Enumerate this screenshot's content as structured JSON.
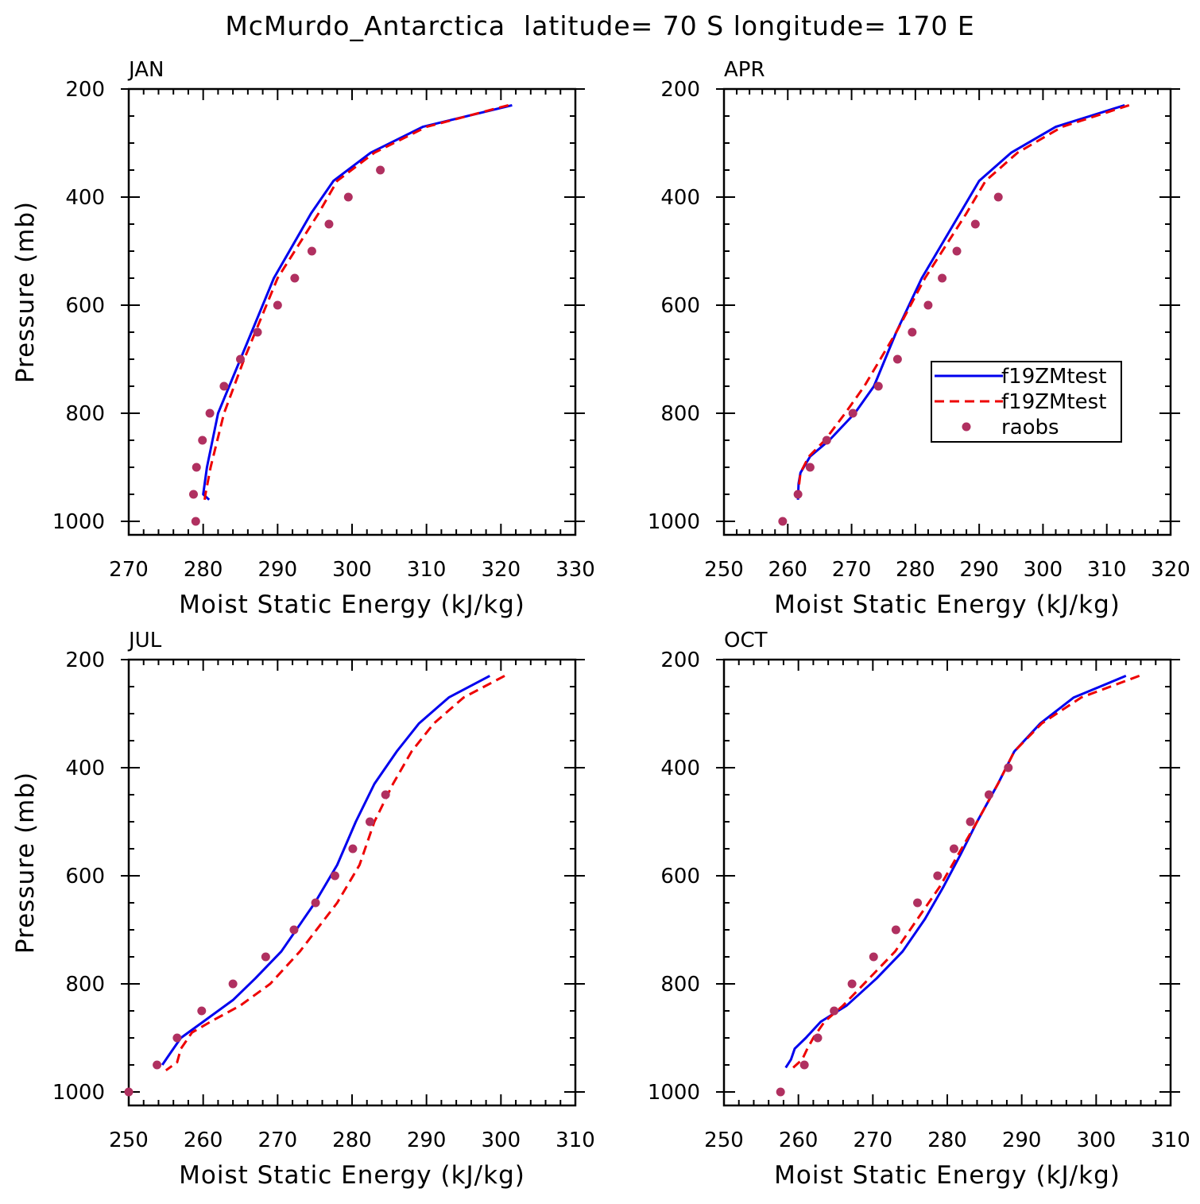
{
  "title": "McMurdo_Antarctica  latitude= 70 S longitude= 170 E",
  "colors": {
    "model_solid": "#0000ee",
    "model_dashed": "#ee0000",
    "raobs": "#b03060",
    "axes": "#000000"
  },
  "legend": {
    "entries": [
      {
        "label": "f19ZMtest",
        "style": "solid"
      },
      {
        "label": "f19ZMtest",
        "style": "dashed"
      },
      {
        "label": "raobs",
        "style": "dot"
      }
    ],
    "panel": "APR",
    "placement": "lower-right of APR panel"
  },
  "chart_data": [
    {
      "type": "line",
      "panel": "JAN",
      "xlabel": "Moist Static Energy (kJ/kg)",
      "ylabel": "Pressure (mb)",
      "xlim": [
        270,
        330
      ],
      "ylim": [
        1000,
        200
      ],
      "xticks": [
        270,
        280,
        290,
        300,
        310,
        320,
        330
      ],
      "yticks": [
        200,
        400,
        600,
        800,
        1000
      ],
      "series": [
        {
          "name": "f19ZMtest",
          "style": "solid",
          "x": [
            321.5,
            309.5,
            302.5,
            297.5,
            294.5,
            289.5,
            285.0,
            282.0,
            280.5,
            280.0,
            280.8
          ],
          "y": [
            230,
            270,
            318,
            370,
            430,
            550,
            700,
            800,
            900,
            950,
            960
          ]
        },
        {
          "name": "f19ZMtest",
          "style": "dashed",
          "x": [
            321.0,
            310.0,
            303.0,
            298.0,
            295.5,
            290.0,
            285.5,
            282.8,
            281.0,
            280.3,
            280.2
          ],
          "y": [
            230,
            270,
            318,
            370,
            430,
            550,
            700,
            800,
            900,
            950,
            960
          ]
        },
        {
          "name": "raobs",
          "style": "dot",
          "x": [
            303.8,
            299.5,
            296.9,
            294.6,
            292.3,
            290.0,
            287.3,
            285.0,
            282.8,
            280.9,
            279.9,
            279.1,
            278.7,
            279.0
          ],
          "y": [
            350,
            400,
            450,
            500,
            550,
            600,
            650,
            700,
            750,
            800,
            850,
            900,
            950,
            1000
          ]
        }
      ]
    },
    {
      "type": "line",
      "panel": "APR",
      "xlabel": "Moist Static Energy (kJ/kg)",
      "ylabel": "",
      "xlim": [
        250,
        320
      ],
      "ylim": [
        1000,
        200
      ],
      "xticks": [
        250,
        260,
        270,
        280,
        290,
        300,
        310,
        320
      ],
      "yticks": [
        200,
        400,
        600,
        800,
        1000
      ],
      "series": [
        {
          "name": "f19ZMtest",
          "style": "solid",
          "x": [
            312.8,
            302.0,
            295.0,
            290.0,
            287.0,
            281.0,
            277.0,
            273.5,
            270.5,
            266.5,
            263.5,
            262.0,
            261.7,
            261.6
          ],
          "y": [
            230,
            270,
            318,
            370,
            430,
            550,
            650,
            750,
            800,
            850,
            880,
            910,
            930,
            960
          ]
        },
        {
          "name": "f19ZMtest",
          "style": "dashed",
          "x": [
            313.5,
            303.0,
            296.0,
            291.0,
            288.0,
            281.5,
            277.0,
            272.0,
            269.0,
            265.8,
            263.3,
            262.0,
            261.6
          ],
          "y": [
            230,
            270,
            318,
            370,
            430,
            550,
            650,
            750,
            800,
            850,
            880,
            910,
            950
          ]
        },
        {
          "name": "raobs",
          "style": "dot",
          "x": [
            293.0,
            289.4,
            286.5,
            284.2,
            282.0,
            279.5,
            277.2,
            274.2,
            270.2,
            266.1,
            263.5,
            261.6,
            259.2
          ],
          "y": [
            400,
            450,
            500,
            550,
            600,
            650,
            700,
            750,
            800,
            850,
            900,
            950,
            1000
          ]
        }
      ]
    },
    {
      "type": "line",
      "panel": "JUL",
      "xlabel": "Moist Static Energy (kJ/kg)",
      "ylabel": "Pressure (mb)",
      "xlim": [
        250,
        310
      ],
      "ylim": [
        1000,
        200
      ],
      "xticks": [
        250,
        260,
        270,
        280,
        290,
        300,
        310
      ],
      "yticks": [
        200,
        400,
        600,
        800,
        1000
      ],
      "series": [
        {
          "name": "f19ZMtest",
          "style": "solid",
          "x": [
            298.5,
            293.0,
            289.0,
            286.0,
            283.0,
            280.5,
            278.0,
            275.0,
            270.5,
            267.0,
            264.0,
            260.0,
            257.0,
            255.5,
            254.5
          ],
          "y": [
            230,
            270,
            318,
            370,
            430,
            500,
            580,
            650,
            740,
            790,
            830,
            870,
            900,
            930,
            950
          ]
        },
        {
          "name": "f19ZMtest",
          "style": "dashed",
          "x": [
            300.5,
            295.0,
            291.0,
            288.0,
            285.5,
            283.0,
            281.0,
            278.0,
            273.0,
            269.0,
            265.0,
            261.0,
            258.5,
            257.0,
            256.5,
            255.0
          ],
          "y": [
            230,
            270,
            318,
            370,
            430,
            500,
            580,
            650,
            740,
            800,
            840,
            870,
            890,
            920,
            945,
            960
          ]
        },
        {
          "name": "raobs",
          "style": "dot",
          "x": [
            284.5,
            282.4,
            280.1,
            277.7,
            275.1,
            272.2,
            268.4,
            264.0,
            259.8,
            256.5,
            253.8,
            250.0
          ],
          "y": [
            450,
            500,
            550,
            600,
            650,
            700,
            750,
            800,
            850,
            900,
            950,
            1000
          ]
        }
      ]
    },
    {
      "type": "line",
      "panel": "OCT",
      "xlabel": "Moist Static Energy (kJ/kg)",
      "ylabel": "",
      "xlim": [
        250,
        310
      ],
      "ylim": [
        1000,
        200
      ],
      "xticks": [
        250,
        260,
        270,
        280,
        290,
        300,
        310
      ],
      "yticks": [
        200,
        400,
        600,
        800,
        1000
      ],
      "series": [
        {
          "name": "f19ZMtest",
          "style": "solid",
          "x": [
            304.0,
            297.0,
            292.5,
            289.0,
            286.8,
            284.0,
            281.8,
            279.5,
            277.0,
            274.0,
            270.5,
            266.5,
            263.0,
            261.0,
            259.5,
            259.0,
            258.3
          ],
          "y": [
            230,
            270,
            318,
            370,
            430,
            500,
            560,
            620,
            680,
            740,
            790,
            840,
            870,
            900,
            920,
            940,
            955
          ]
        },
        {
          "name": "f19ZMtest",
          "style": "dashed",
          "x": [
            305.8,
            298.0,
            292.7,
            289.0,
            286.8,
            284.0,
            281.5,
            279.0,
            276.0,
            273.0,
            269.5,
            266.0,
            263.5,
            262.0,
            261.2,
            260.5,
            259.3
          ],
          "y": [
            230,
            270,
            318,
            370,
            430,
            500,
            560,
            620,
            680,
            740,
            790,
            840,
            870,
            900,
            920,
            940,
            955
          ]
        },
        {
          "name": "raobs",
          "style": "dot",
          "x": [
            288.2,
            285.6,
            283.1,
            280.9,
            278.7,
            276.0,
            273.1,
            270.1,
            267.2,
            264.8,
            262.6,
            260.8,
            257.6
          ],
          "y": [
            400,
            450,
            500,
            550,
            600,
            650,
            700,
            750,
            800,
            850,
            900,
            950,
            1000
          ]
        }
      ]
    }
  ]
}
